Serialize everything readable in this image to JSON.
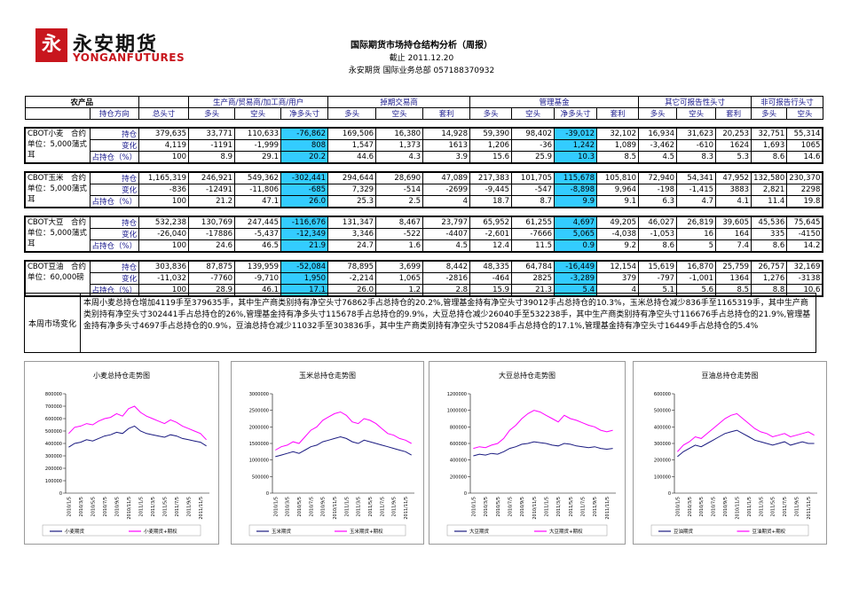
{
  "header": {
    "logo_cn": "永安期货",
    "logo_en": "YONGANFUTURES",
    "title": "国际期货市场持仓结构分析（周报）",
    "date": "截止 2011.12.20",
    "contact": "永安期货  国际业务总部    057188370932"
  },
  "table": {
    "corner": "农产品",
    "direction_header": "持仓方向",
    "total_header": "总头寸",
    "groups": [
      {
        "name": "生产商/贸易商/加工商/用户",
        "columns": [
          "多头",
          "空头",
          "净多头寸"
        ]
      },
      {
        "name": "掉期交易商",
        "columns": [
          "多头",
          "空头",
          "套利"
        ]
      },
      {
        "name": "管理基金",
        "columns": [
          "多头",
          "空头",
          "净多头寸",
          "套利"
        ]
      },
      {
        "name": "其它可报告性头寸",
        "columns": [
          "多头",
          "空头",
          "套利"
        ]
      },
      {
        "name": "非可报告行头寸",
        "columns": [
          "多头",
          "空头"
        ]
      }
    ],
    "blocks": [
      {
        "name": "CBOT小麦　合约单位：5,000蒲式耳",
        "rows": [
          {
            "label": "持仓",
            "cells": [
              "379,635",
              "33,771",
              "110,633",
              "-76,862",
              "169,506",
              "16,380",
              "14,928",
              "59,390",
              "98,402",
              "-39,012",
              "32,102",
              "16,934",
              "31,623",
              "20,253",
              "32,751",
              "55,314"
            ]
          },
          {
            "label": "变化",
            "cells": [
              "4,119",
              "-1191",
              "-1,999",
              "808",
              "1,547",
              "1,373",
              "1613",
              "1,206",
              "-36",
              "1,242",
              "1,089",
              "-3,462",
              "-610",
              "1624",
              "1,693",
              "1065"
            ]
          },
          {
            "label": "占持仓（%）",
            "cells": [
              "100",
              "8.9",
              "29.1",
              "20.2",
              "44.6",
              "4.3",
              "3.9",
              "15.6",
              "25.9",
              "10.3",
              "8.5",
              "4.5",
              "8.3",
              "5.3",
              "8.6",
              "14.6"
            ]
          }
        ]
      },
      {
        "name": "CBOT玉米　合约单位：5,000蒲式耳",
        "rows": [
          {
            "label": "持仓",
            "cells": [
              "1,165,319",
              "246,921",
              "549,362",
              "-302,441",
              "294,644",
              "28,690",
              "47,089",
              "217,383",
              "101,705",
              "115,678",
              "105,810",
              "72,940",
              "54,341",
              "47,952",
              "132,580",
              "230,370"
            ]
          },
          {
            "label": "变化",
            "cells": [
              "-836",
              "-12491",
              "-11,806",
              "-685",
              "7,329",
              "-514",
              "-2699",
              "-9,445",
              "-547",
              "-8,898",
              "9,964",
              "-198",
              "-1,415",
              "3883",
              "2,821",
              "2298"
            ]
          },
          {
            "label": "占持仓（%）",
            "cells": [
              "100",
              "21.2",
              "47.1",
              "26.0",
              "25.3",
              "2.5",
              "4",
              "18.7",
              "8.7",
              "9.9",
              "9.1",
              "6.3",
              "4.7",
              "4.1",
              "11.4",
              "19.8"
            ]
          }
        ]
      },
      {
        "name": "CBOT大豆　合约单位：5,000蒲式耳",
        "rows": [
          {
            "label": "持仓",
            "cells": [
              "532,238",
              "130,769",
              "247,445",
              "-116,676",
              "131,347",
              "8,467",
              "23,797",
              "65,952",
              "61,255",
              "4,697",
              "49,205",
              "46,027",
              "26,819",
              "39,605",
              "45,536",
              "75,645"
            ]
          },
          {
            "label": "变化",
            "cells": [
              "-26,040",
              "-17886",
              "-5,437",
              "-12,349",
              "3,346",
              "-522",
              "-4407",
              "-2,601",
              "-7666",
              "5,065",
              "-4,038",
              "-1,053",
              "16",
              "164",
              "335",
              "-4150"
            ]
          },
          {
            "label": "占持仓（%）",
            "cells": [
              "100",
              "24.6",
              "46.5",
              "21.9",
              "24.7",
              "1.6",
              "4.5",
              "12.4",
              "11.5",
              "0.9",
              "9.2",
              "8.6",
              "5",
              "7.4",
              "8.6",
              "14.2"
            ]
          }
        ]
      },
      {
        "name": "CBOT豆油　合约单位：60,000磅",
        "rows": [
          {
            "label": "持仓",
            "cells": [
              "303,836",
              "87,875",
              "139,959",
              "-52,084",
              "78,895",
              "3,699",
              "8,442",
              "48,335",
              "64,784",
              "-16,449",
              "12,154",
              "15,619",
              "16,870",
              "25,759",
              "26,757",
              "32,169"
            ]
          },
          {
            "label": "变化",
            "cells": [
              "-11,032",
              "-7760",
              "-9,710",
              "1,950",
              "-2,214",
              "1,065",
              "-2816",
              "-464",
              "2825",
              "-3,289",
              "379",
              "-797",
              "-1,001",
              "1364",
              "1,276",
              "-3138"
            ]
          },
          {
            "label": "占持仓（%）",
            "cells": [
              "100",
              "28.9",
              "46.1",
              "17.1",
              "26.0",
              "1.2",
              "2.8",
              "15.9",
              "21.3",
              "5.4",
              "4",
              "5.1",
              "5.6",
              "8.5",
              "8.8",
              "10.6"
            ]
          }
        ]
      }
    ]
  },
  "summary": {
    "label": "本周市场变化",
    "text": "本周小麦总持仓增加4119手至379635手，其中生产商类别持有净空头寸76862手占总持仓的20.2%,管理基金持有净空头寸39012手占总持仓的10.3%，玉米总持仓减少836手至1165319手，其中生产商类别持有净空头寸302441手占总持仓的26%,管理基金持有净多头寸115678手占总持仓的9.9%，大豆总持仓减少26040手至532238手，其中生产商类别持有净空头寸116676手占总持仓的21.9%,管理基金持有净多头寸4697手占总持仓的0.9%，豆油总持仓减少11032手至303836手，其中生产商类别持有净空头寸52084手占总持仓的17.1%,管理基金持有净空头寸16449手占总持仓的5.4%"
  },
  "chart_data": [
    {
      "type": "line",
      "title": "小麦总持仓走势图",
      "categories": [
        "2010/1/5",
        null,
        "2010/3/5",
        null,
        "2010/5/5",
        null,
        "2010/7/5",
        null,
        "2010/9/5",
        null,
        "2010/11/5",
        null,
        "2011/1/5",
        null,
        "2011/3/5",
        null,
        "2011/5/5",
        null,
        "2011/7/5",
        null,
        "2011/9/5",
        null,
        "2011/11/5",
        null
      ],
      "series": [
        {
          "name": "小麦期货",
          "color": "#1a1a80",
          "values": [
            370000,
            400000,
            410000,
            430000,
            420000,
            440000,
            460000,
            470000,
            490000,
            480000,
            520000,
            540000,
            500000,
            480000,
            470000,
            460000,
            450000,
            470000,
            460000,
            440000,
            430000,
            420000,
            410000,
            380000
          ]
        },
        {
          "name": "小麦期货+期权",
          "color": "#ff00ff",
          "values": [
            480000,
            530000,
            540000,
            560000,
            550000,
            580000,
            600000,
            610000,
            640000,
            620000,
            680000,
            700000,
            650000,
            620000,
            600000,
            580000,
            560000,
            590000,
            570000,
            540000,
            520000,
            500000,
            480000,
            430000
          ]
        }
      ],
      "ylim": [
        0,
        800000
      ],
      "yticks": [
        0,
        100000,
        200000,
        300000,
        400000,
        500000,
        600000,
        700000,
        800000
      ]
    },
    {
      "type": "line",
      "title": "玉米总持仓走势图",
      "categories": [
        "2010/1/5",
        null,
        "2010/3/5",
        null,
        "2010/5/5",
        null,
        "2010/7/5",
        null,
        "2010/9/5",
        null,
        "2010/11/5",
        null,
        "2011/1/5",
        null,
        "2011/3/5",
        null,
        "2011/5/5",
        null,
        "2011/7/5",
        null,
        "2011/9/5",
        null,
        "2011/11/5",
        null
      ],
      "series": [
        {
          "name": "玉米期货",
          "color": "#1a1a80",
          "values": [
            1100000,
            1150000,
            1200000,
            1250000,
            1200000,
            1300000,
            1400000,
            1450000,
            1550000,
            1600000,
            1650000,
            1700000,
            1650000,
            1550000,
            1500000,
            1600000,
            1550000,
            1500000,
            1450000,
            1400000,
            1350000,
            1300000,
            1250000,
            1150000
          ]
        },
        {
          "name": "玉米期货+期权",
          "color": "#ff00ff",
          "values": [
            1300000,
            1400000,
            1450000,
            1550000,
            1500000,
            1700000,
            1900000,
            2000000,
            2200000,
            2300000,
            2400000,
            2450000,
            2350000,
            2150000,
            2100000,
            2250000,
            2200000,
            2100000,
            1950000,
            1800000,
            1750000,
            1650000,
            1600000,
            1500000
          ]
        }
      ],
      "ylim": [
        0,
        3000000
      ],
      "yticks": [
        0,
        500000,
        1000000,
        1500000,
        2000000,
        2500000,
        3000000
      ]
    },
    {
      "type": "line",
      "title": "大豆总持仓走势图",
      "categories": [
        "2010/1/5",
        null,
        "2010/3/5",
        null,
        "2010/5/5",
        null,
        "2010/7/5",
        null,
        "2010/9/5",
        null,
        "2010/11/5",
        null,
        "2011/1/5",
        null,
        "2011/3/5",
        null,
        "2011/5/5",
        null,
        "2011/7/5",
        null,
        "2011/9/5",
        null,
        "2011/11/5",
        null
      ],
      "series": [
        {
          "name": "大豆期货",
          "color": "#1a1a80",
          "values": [
            450000,
            470000,
            460000,
            480000,
            470000,
            500000,
            540000,
            560000,
            590000,
            600000,
            620000,
            610000,
            600000,
            580000,
            570000,
            600000,
            590000,
            570000,
            560000,
            550000,
            560000,
            540000,
            530000,
            540000
          ]
        },
        {
          "name": "大豆期货+期权",
          "color": "#ff00ff",
          "values": [
            540000,
            560000,
            550000,
            580000,
            600000,
            660000,
            760000,
            820000,
            900000,
            960000,
            1000000,
            980000,
            940000,
            900000,
            860000,
            940000,
            900000,
            880000,
            850000,
            820000,
            800000,
            760000,
            740000,
            760000
          ]
        }
      ],
      "ylim": [
        0,
        1200000
      ],
      "yticks": [
        0,
        200000,
        400000,
        600000,
        800000,
        1000000,
        1200000
      ]
    },
    {
      "type": "line",
      "title": "豆油总持仓走势图",
      "categories": [
        "2010/1/5",
        null,
        "2010/3/5",
        null,
        "2010/5/5",
        null,
        "2010/7/5",
        null,
        "2010/9/5",
        null,
        "2010/11/5",
        null,
        "2011/1/5",
        null,
        "2011/3/5",
        null,
        "2011/5/5",
        null,
        "2011/7/5",
        null,
        "2011/9/5",
        null,
        "2011/11/5",
        null
      ],
      "series": [
        {
          "name": "豆油期货",
          "color": "#1a1a80",
          "values": [
            220000,
            250000,
            270000,
            290000,
            280000,
            300000,
            320000,
            340000,
            360000,
            370000,
            380000,
            360000,
            340000,
            320000,
            310000,
            300000,
            290000,
            300000,
            310000,
            290000,
            300000,
            310000,
            300000,
            300000
          ]
        },
        {
          "name": "豆油期货+期权",
          "color": "#ff00ff",
          "values": [
            250000,
            290000,
            310000,
            340000,
            330000,
            360000,
            390000,
            420000,
            450000,
            470000,
            480000,
            450000,
            420000,
            390000,
            370000,
            360000,
            340000,
            350000,
            360000,
            340000,
            350000,
            360000,
            370000,
            350000
          ]
        }
      ],
      "ylim": [
        0,
        600000
      ],
      "yticks": [
        0,
        100000,
        200000,
        300000,
        400000,
        500000,
        600000
      ]
    }
  ]
}
